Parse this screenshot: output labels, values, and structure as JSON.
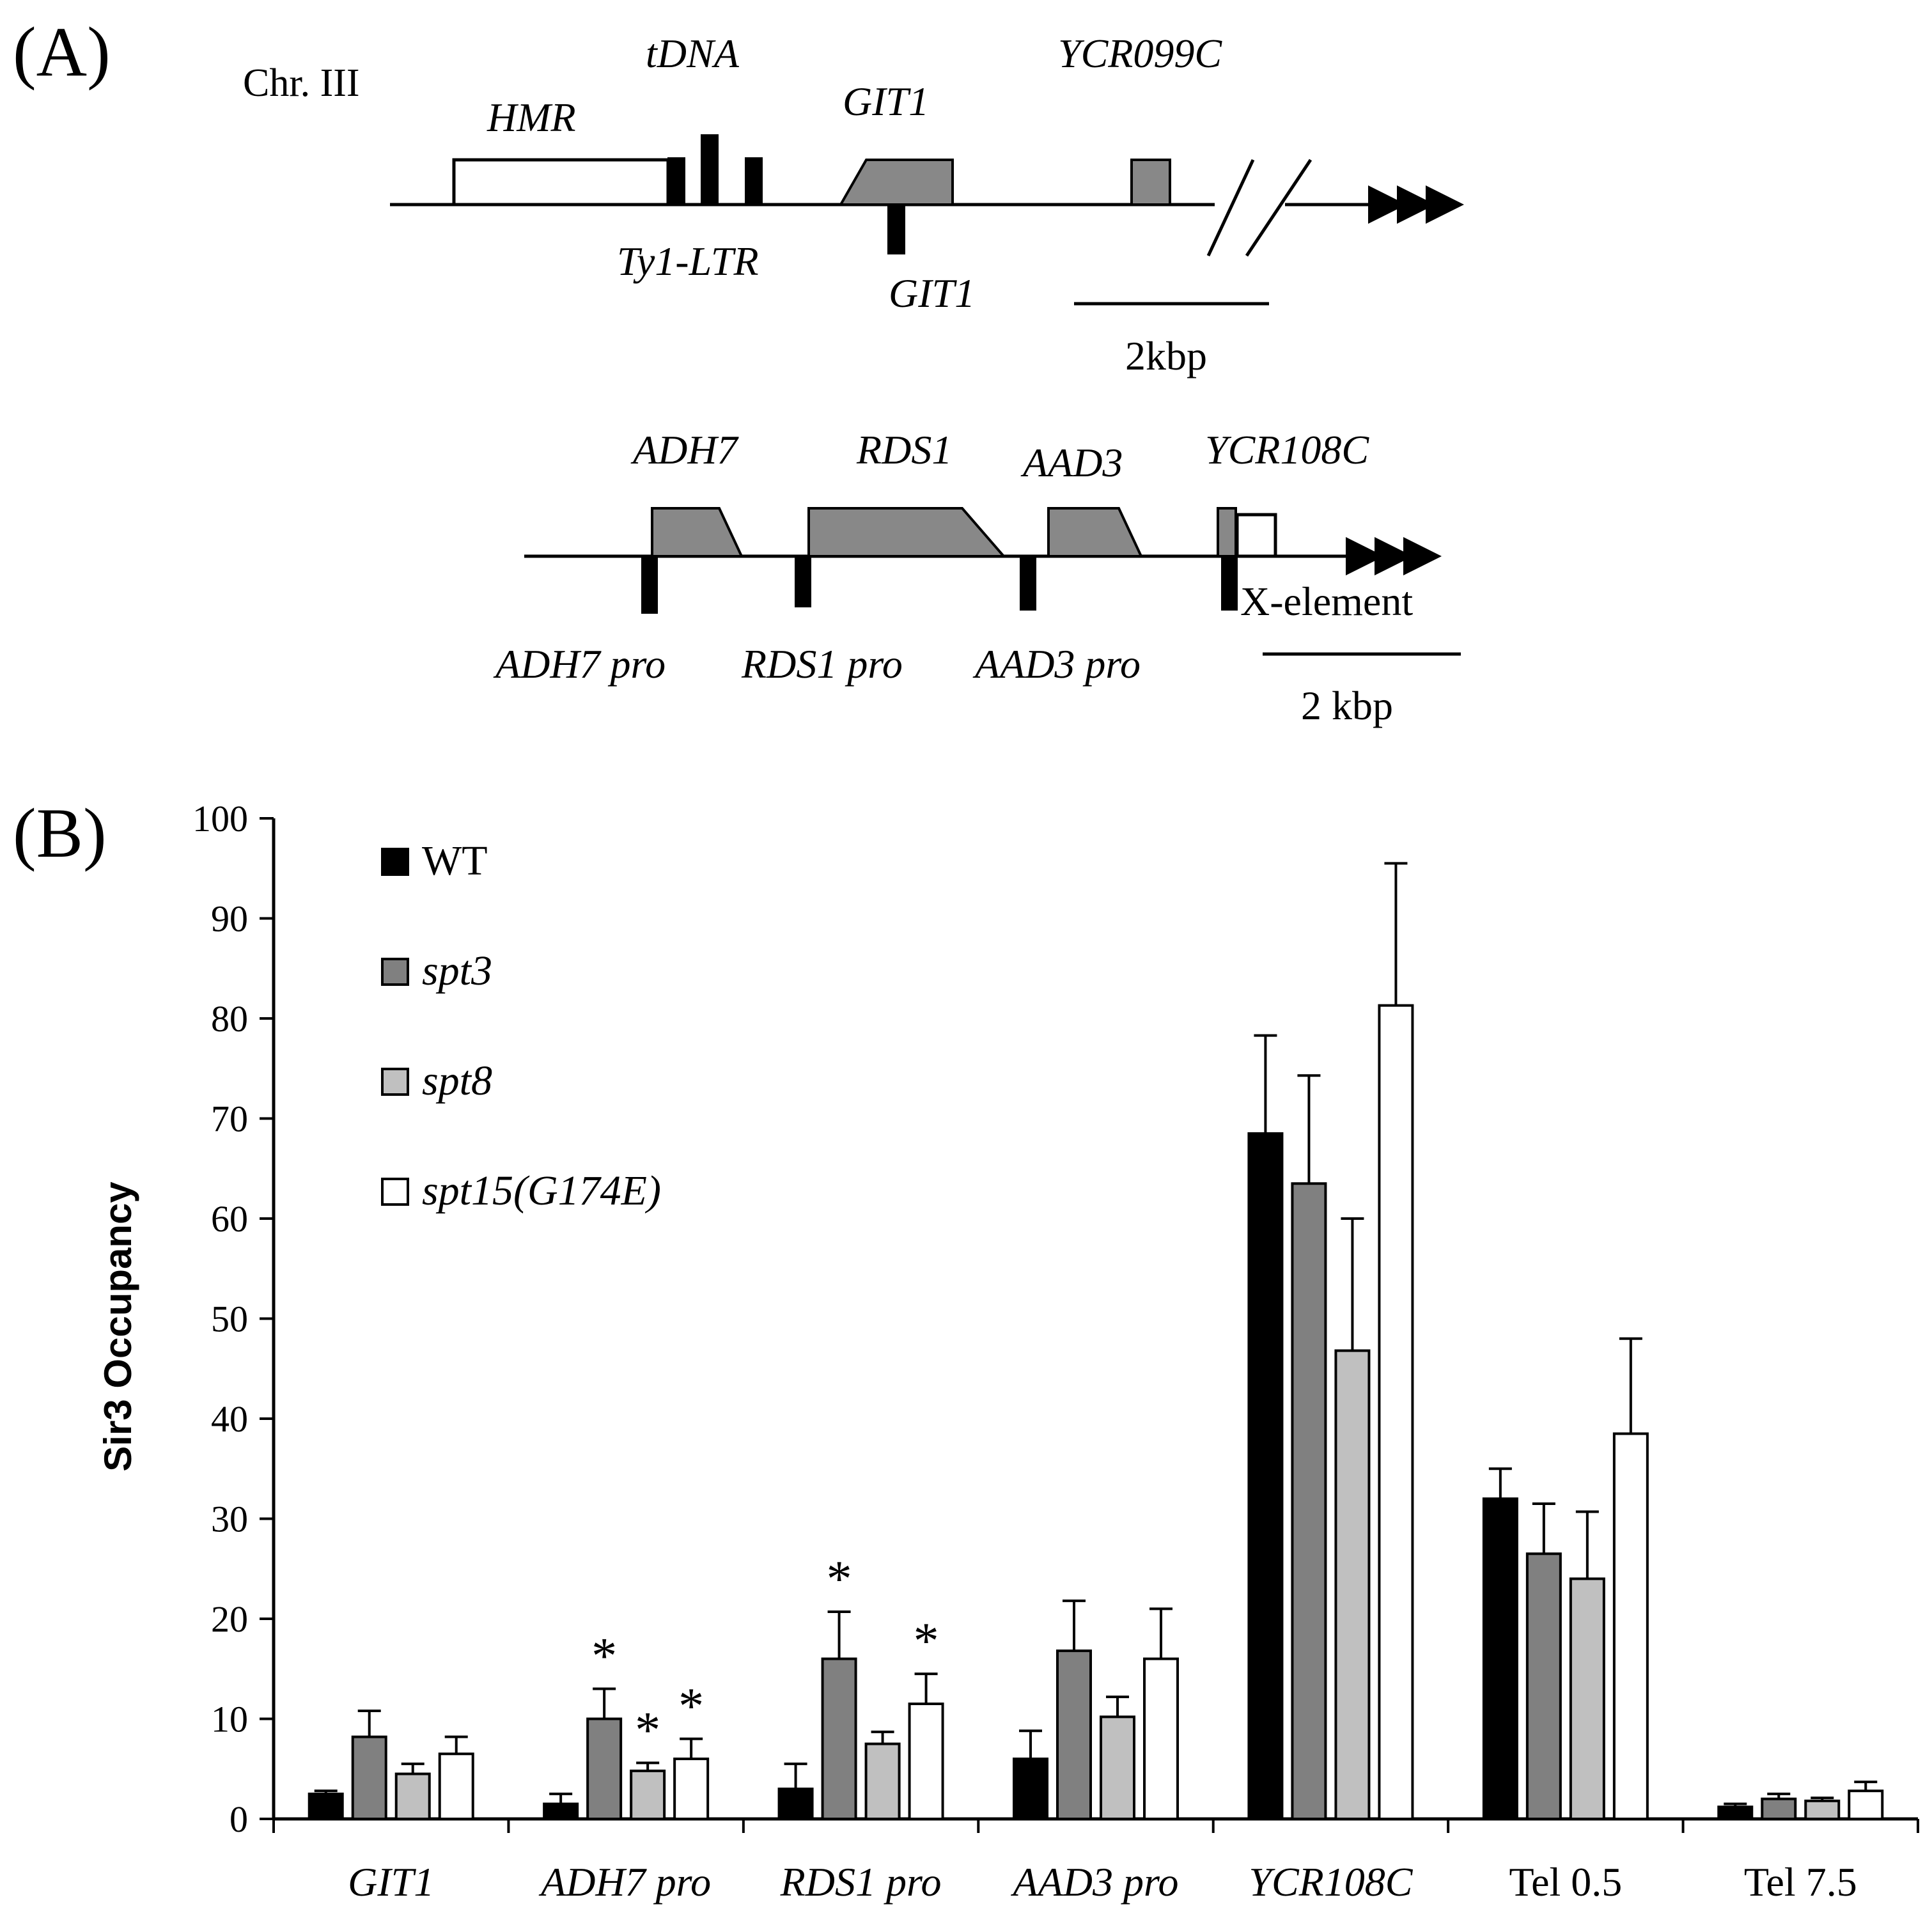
{
  "panel_a": {
    "label": "(A)",
    "map1": {
      "chromosome": "Chr. III",
      "feature_labels": {
        "hmr": "HMR",
        "tdna": "tDNA",
        "git1_gene": "GIT1",
        "ycr099c": "YCR099C",
        "ty1_ltr": "Ty1-LTR",
        "git1_probe": "GIT1"
      },
      "scale_label": "2kbp"
    },
    "map2": {
      "feature_labels": {
        "adh7": "ADH7",
        "rds1": "RDS1",
        "aad3": "AAD3",
        "ycr108c": "YCR108C",
        "x_element": "X-element",
        "adh7_pro": "ADH7 pro",
        "rds1_pro": "RDS1 pro",
        "aad3_pro": "AAD3 pro"
      },
      "scale_label": "2 kbp"
    }
  },
  "panel_b": {
    "label": "(B)"
  },
  "colors": {
    "wt": "#000000",
    "spt3": "#808080",
    "spt8": "#c0c0c0",
    "spt15": "#ffffff",
    "gene_fill": "#888888",
    "outline": "#000000"
  },
  "chart_data": {
    "type": "bar",
    "title": "",
    "xlabel": "",
    "ylabel": "Sir3 Occupancy",
    "ylim": [
      0,
      100
    ],
    "yticks": [
      0,
      10,
      20,
      30,
      40,
      50,
      60,
      70,
      80,
      90,
      100
    ],
    "categories": [
      "GIT1",
      "ADH7 pro",
      "RDS1 pro",
      "AAD3 pro",
      "YCR108C",
      "Tel 0.5",
      "Tel 7.5"
    ],
    "category_italic": [
      true,
      true,
      true,
      true,
      true,
      false,
      false
    ],
    "legend_position": "top-left",
    "series": [
      {
        "name": "WT",
        "key": "wt",
        "italic": false,
        "values": [
          2.5,
          1.5,
          3.0,
          6.0,
          68.5,
          32.0,
          1.2
        ],
        "errors": [
          0.3,
          1.0,
          2.5,
          2.8,
          9.8,
          3.0,
          0.3
        ]
      },
      {
        "name": "spt3",
        "key": "spt3",
        "italic": true,
        "values": [
          8.2,
          10.0,
          16.0,
          16.8,
          63.5,
          26.5,
          2.0
        ],
        "errors": [
          2.6,
          3.0,
          4.7,
          5.0,
          10.8,
          5.0,
          0.5
        ]
      },
      {
        "name": "spt8",
        "key": "spt8",
        "italic": true,
        "values": [
          4.5,
          4.8,
          7.5,
          10.2,
          46.8,
          24.0,
          1.8
        ],
        "errors": [
          1.0,
          0.8,
          1.2,
          2.0,
          13.2,
          6.7,
          0.3
        ]
      },
      {
        "name": "spt15(G174E)",
        "key": "spt15",
        "italic": true,
        "values": [
          6.5,
          6.0,
          11.5,
          16.0,
          81.3,
          38.5,
          2.8
        ],
        "errors": [
          1.7,
          2.0,
          3.0,
          5.0,
          14.2,
          9.5,
          0.9
        ]
      }
    ],
    "annotations": [
      {
        "text": "*",
        "category": "ADH7 pro",
        "series": "spt3"
      },
      {
        "text": "*",
        "category": "ADH7 pro",
        "series": "spt8"
      },
      {
        "text": "*",
        "category": "ADH7 pro",
        "series": "spt15(G174E)"
      },
      {
        "text": "*",
        "category": "RDS1 pro",
        "series": "spt3"
      },
      {
        "text": "*",
        "category": "RDS1 pro",
        "series": "spt15(G174E)"
      }
    ]
  }
}
